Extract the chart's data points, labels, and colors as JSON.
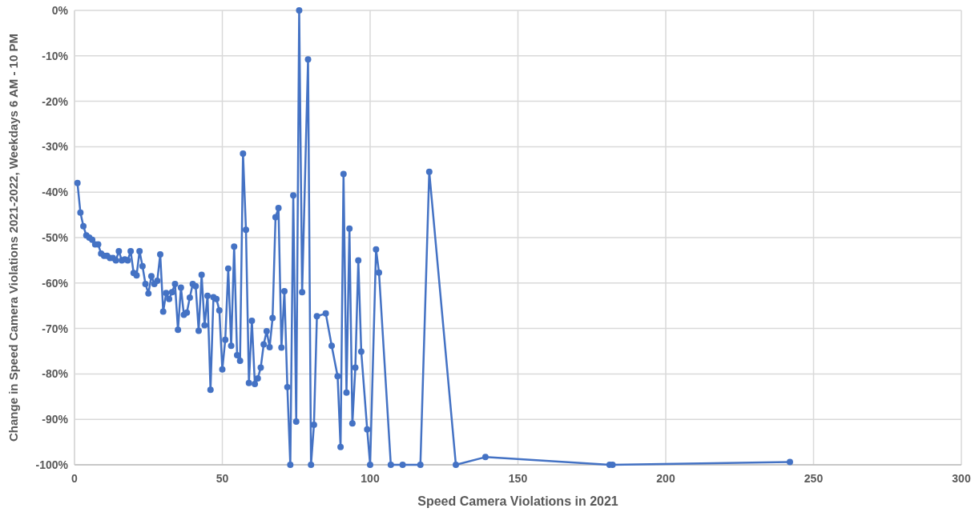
{
  "chart_data": {
    "type": "line",
    "xlabel": "Speed Camera Violations in 2021",
    "ylabel": "Change in Speed Camera Violations 2021-2022, Weekdays 6 AM - 10 PM",
    "x": [
      1,
      2,
      3,
      4,
      5,
      6,
      7,
      8,
      9,
      10,
      11,
      12,
      13,
      14,
      15,
      16,
      17,
      18,
      19,
      20,
      21,
      22,
      23,
      24,
      25,
      26,
      27,
      28,
      29,
      30,
      31,
      32,
      33,
      34,
      35,
      36,
      37,
      38,
      39,
      40,
      41,
      42,
      43,
      44,
      45,
      46,
      47,
      48,
      49,
      50,
      51,
      52,
      53,
      54,
      55,
      56,
      57,
      58,
      59,
      60,
      61,
      62,
      63,
      64,
      65,
      66,
      67,
      68,
      69,
      70,
      71,
      72,
      73,
      74,
      75,
      76,
      77,
      79,
      80,
      81,
      82,
      85,
      87,
      89,
      90,
      91,
      92,
      93,
      94,
      95,
      96,
      97,
      99,
      100,
      102,
      103,
      107,
      111,
      117,
      120,
      129,
      139,
      181,
      182,
      242
    ],
    "series": [
      {
        "color": "#4472c4",
        "values": [
          -38,
          -44.5,
          -47.5,
          -49.5,
          -50,
          -50.5,
          -51.5,
          -51.5,
          -53.5,
          -54,
          -54,
          -54.5,
          -54.5,
          -55,
          -53,
          -55,
          -54.8,
          -55,
          -53,
          -57.8,
          -58.3,
          -53,
          -56.3,
          -60.2,
          -62.3,
          -58.5,
          -60.2,
          -59.5,
          -53.7,
          -66.3,
          -62.2,
          -63.5,
          -62,
          -60.2,
          -70.3,
          -61,
          -67,
          -66.5,
          -63.2,
          -60.2,
          -60.7,
          -70.5,
          -58.2,
          -69.3,
          -62.8,
          -83.5,
          -63.1,
          -63.5,
          -66,
          -79,
          -72.5,
          -56.8,
          -73.8,
          -52,
          -75.9,
          -77.1,
          -31.5,
          -48.3,
          -82,
          -68.3,
          -82.2,
          -81,
          -78.6,
          -73.5,
          -70.6,
          -74.1,
          -67.7,
          -45.5,
          -43.5,
          -74.2,
          -61.8,
          -82.9,
          -100,
          -40.7,
          -90.5,
          0,
          -62,
          -10.8,
          -100,
          -91.2,
          -67.3,
          -66.7,
          -73.8,
          -80.5,
          -96.1,
          -36,
          -84.1,
          -48,
          -90.9,
          -78.6,
          -55,
          -75.1,
          -92.2,
          -100,
          -52.6,
          -57.7,
          -100,
          -100,
          -100,
          -35.5,
          -100,
          -98.3,
          -100,
          -100,
          -99.4
        ]
      }
    ],
    "xlim": [
      0,
      300
    ],
    "xticks": [
      0,
      50,
      100,
      150,
      200,
      250,
      300
    ],
    "ylim": [
      -100,
      0
    ],
    "yticks": [
      {
        "value": 0,
        "label": "0%"
      },
      {
        "value": -10,
        "label": "-10%"
      },
      {
        "value": -20,
        "label": "-20%"
      },
      {
        "value": -30,
        "label": "-30%"
      },
      {
        "value": -40,
        "label": "-40%"
      },
      {
        "value": -50,
        "label": "-50%"
      },
      {
        "value": -60,
        "label": "-60%"
      },
      {
        "value": -70,
        "label": "-70%"
      },
      {
        "value": -80,
        "label": "-80%"
      },
      {
        "value": -90,
        "label": "-90%"
      },
      {
        "value": -100,
        "label": "-100%"
      }
    ],
    "grid": true,
    "marker": "circle",
    "line_style": "solid"
  }
}
